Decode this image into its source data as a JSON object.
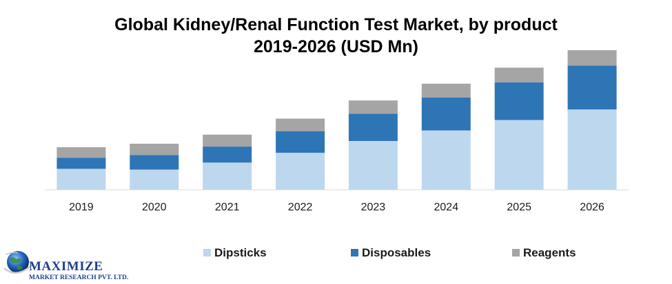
{
  "chart_data": {
    "type": "bar",
    "stacked": true,
    "title": "Global Kidney/Renal Function Test Market, by product",
    "subtitle": "2019-2026 (USD Mn)",
    "xlabel": "",
    "ylabel": "",
    "categories": [
      "2019",
      "2020",
      "2021",
      "2022",
      "2023",
      "2024",
      "2025",
      "2026"
    ],
    "ylim": [
      0,
      100
    ],
    "grid": false,
    "legend_position": "bottom",
    "series": [
      {
        "name": "Dipsticks",
        "color": "#bdd7ee",
        "values": [
          15,
          14.5,
          19.5,
          26.5,
          35,
          42.5,
          50,
          57.5
        ]
      },
      {
        "name": "Disposables",
        "color": "#2e75b6",
        "values": [
          8,
          10.5,
          11.5,
          15.5,
          19.5,
          23.5,
          27,
          31.5
        ]
      },
      {
        "name": "Reagents",
        "color": "#a5a5a5",
        "values": [
          7.5,
          8,
          8.5,
          9,
          9.5,
          10,
          10.5,
          11
        ]
      }
    ]
  },
  "logo": {
    "name": "MAXIMIZE",
    "tagline": "MARKET RESEARCH PVT. LTD."
  }
}
